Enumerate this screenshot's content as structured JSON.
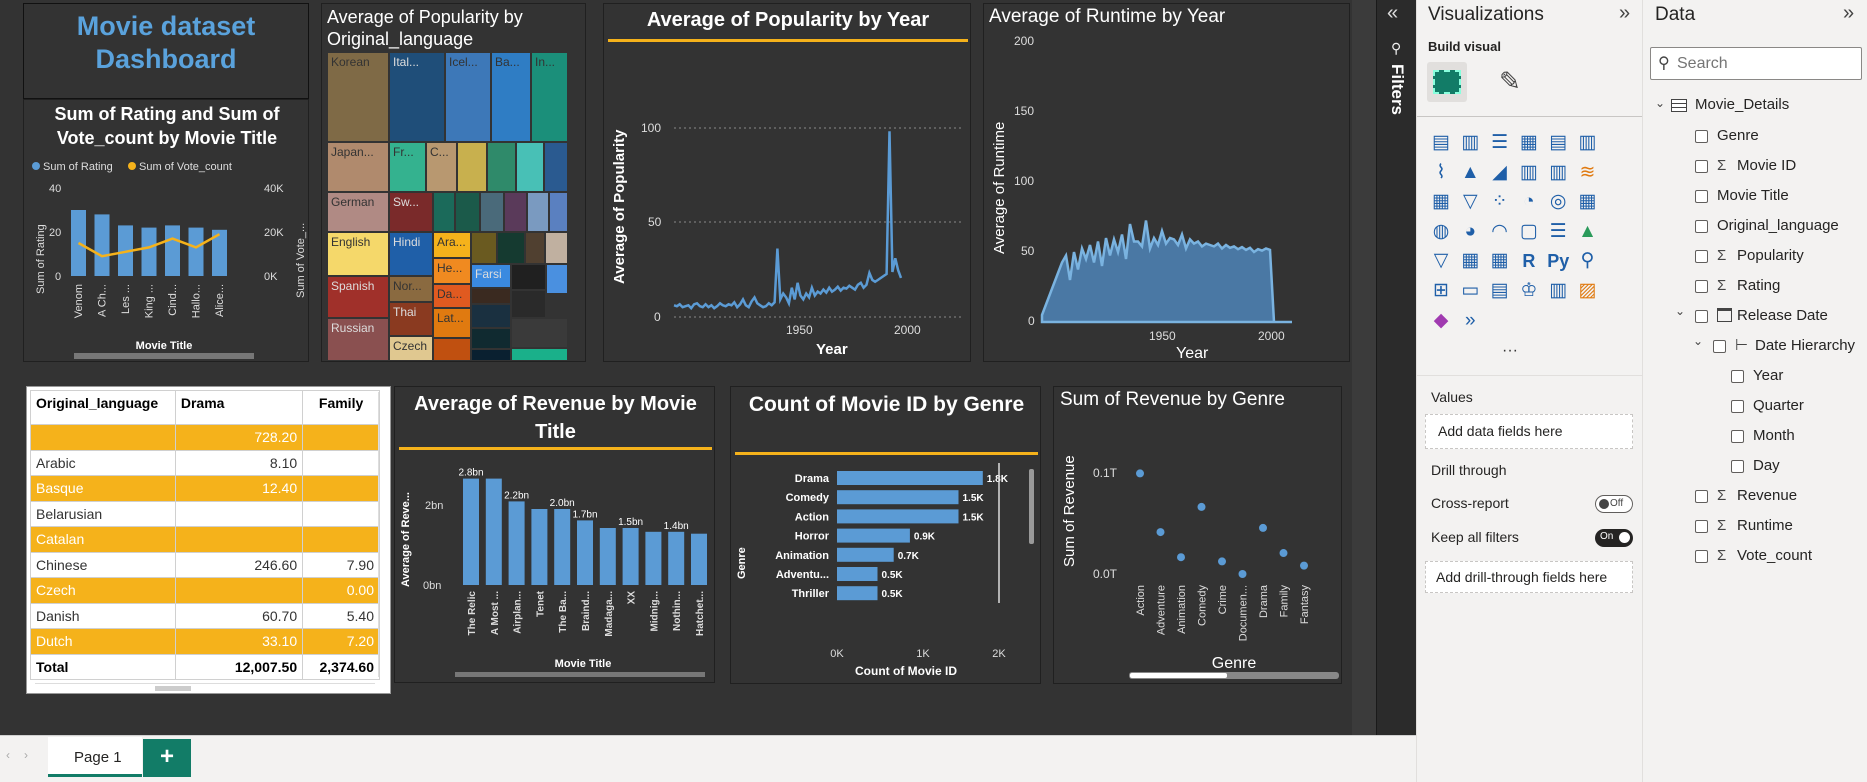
{
  "dashboard": {
    "title": "Movie dataset Dashboard"
  },
  "charts": {
    "rating_vote": {
      "title": "Sum of Rating and Sum of Vote_count by Movie Title",
      "legend": [
        "Sum of Rating",
        "Sum of Vote_count"
      ],
      "left_axis_label": "Sum of Rating",
      "right_axis_label": "Sum of Vote_...",
      "x_label": "Movie Title",
      "left_ticks": [
        "40",
        "20",
        "0"
      ],
      "right_ticks": [
        "40K",
        "20K",
        "0K"
      ],
      "categories": [
        "Venom",
        "A Ch...",
        "Les ...",
        "King ...",
        "Cind...",
        "Hallo...",
        "Alice..."
      ]
    },
    "treemap": {
      "title": "Average of Popularity by Original_language",
      "tiles": [
        "Korean",
        "Ital...",
        "Icel...",
        "Ba...",
        "In...",
        "Japan...",
        "Fr...",
        "C...",
        "German",
        "Sw...",
        "English",
        "Hindi",
        "Ara...",
        "Nor...",
        "He...",
        "Spanish",
        "Thai",
        "Da...",
        "Farsi",
        "Russian",
        "Czech",
        "Lat..."
      ]
    },
    "pop_year": {
      "title": "Average of Popularity by Year",
      "ylabel": "Average of Popularity",
      "xlabel": "Year",
      "yticks": [
        "100",
        "50",
        "0"
      ],
      "xticks": [
        "1950",
        "2000"
      ]
    },
    "runtime_year": {
      "title": "Average of Runtime by Year",
      "ylabel": "Average of Runtime",
      "xlabel": "Year",
      "yticks": [
        "200",
        "150",
        "100",
        "50",
        "0"
      ],
      "xticks": [
        "1950",
        "2000"
      ]
    },
    "matrix": {
      "headers": [
        "Original_language",
        "Drama",
        "Family"
      ],
      "rows": [
        [
          "",
          "728.20",
          ""
        ],
        [
          "Arabic",
          "8.10",
          ""
        ],
        [
          "Basque",
          "12.40",
          ""
        ],
        [
          "Belarusian",
          "",
          ""
        ],
        [
          "Catalan",
          "",
          ""
        ],
        [
          "Chinese",
          "246.60",
          "7.90"
        ],
        [
          "Czech",
          "",
          "0.00"
        ],
        [
          "Danish",
          "60.70",
          "5.40"
        ],
        [
          "Dutch",
          "33.10",
          "7.20"
        ]
      ],
      "total": [
        "Total",
        "12,007.50",
        "2,374.60"
      ]
    },
    "revenue_title": {
      "title": "Average of Revenue by Movie Title",
      "ylabel": "Average of Reve...",
      "xlabel": "Movie Title",
      "yticks": [
        "2bn",
        "0bn"
      ],
      "categories": [
        "The Relic",
        "A Most ...",
        "Airplan...",
        "Tenet",
        "The Ba...",
        "Braind...",
        "Madaga...",
        "XX",
        "Midnig...",
        "Nothin...",
        "Hatchet..."
      ],
      "labels": [
        "2.8bn",
        "2.2bn",
        "2.0bn",
        "1.7bn",
        "1.5bn",
        "1.4bn"
      ]
    },
    "count_genre": {
      "title": "Count of Movie ID by Genre",
      "ylabel": "Genre",
      "xlabel": "Count of Movie ID",
      "xticks": [
        "0K",
        "1K",
        "2K"
      ],
      "categories": [
        "Drama",
        "Comedy",
        "Action",
        "Horror",
        "Animation",
        "Adventu...",
        "Thriller"
      ],
      "labels": [
        "1.8K",
        "1.5K",
        "1.5K",
        "0.9K",
        "0.7K",
        "0.5K",
        "0.5K"
      ]
    },
    "revenue_genre": {
      "title": "Sum of Revenue by Genre",
      "ylabel": "Sum of Revenue",
      "xlabel": "Genre",
      "yticks": [
        "0.1T",
        "0.0T"
      ],
      "categories": [
        "Action",
        "Adventure",
        "Animation",
        "Comedy",
        "Crime",
        "Documen...",
        "Drama",
        "Family",
        "Fantasy"
      ]
    }
  },
  "chart_data": [
    {
      "type": "bar",
      "title": "Sum of Rating and Sum of Vote_count by Movie Title",
      "categories": [
        "Venom",
        "A Ch...",
        "Les ...",
        "King ...",
        "Cind...",
        "Hallo...",
        "Alice..."
      ],
      "series": [
        {
          "name": "Sum of Rating",
          "values": [
            30,
            28,
            23,
            22,
            23,
            22,
            21
          ]
        },
        {
          "name": "Sum of Vote_count",
          "values": [
            15000,
            9000,
            11000,
            13000,
            17000,
            13000,
            19000
          ]
        }
      ],
      "ylim": [
        0,
        40
      ],
      "y2lim": [
        0,
        40000
      ]
    },
    {
      "type": "bar",
      "title": "Average of Revenue by Movie Title",
      "categories": [
        "The Relic",
        "A Most ...",
        "Airplan...",
        "Tenet",
        "The Ba...",
        "Braind...",
        "Madaga...",
        "XX",
        "Midnig...",
        "Nothin...",
        "Hatchet..."
      ],
      "values": [
        2.8,
        2.8,
        2.2,
        2.0,
        2.0,
        1.7,
        1.5,
        1.5,
        1.4,
        1.4,
        1.35
      ],
      "ylabel": "Average of Reve...",
      "xlabel": "Movie Title"
    },
    {
      "type": "bar",
      "title": "Count of Movie ID by Genre",
      "categories": [
        "Drama",
        "Comedy",
        "Action",
        "Horror",
        "Animation",
        "Adventu...",
        "Thriller"
      ],
      "values": [
        1800,
        1500,
        1500,
        900,
        700,
        500,
        500
      ],
      "xlim": [
        0,
        2000
      ]
    },
    {
      "type": "scatter",
      "title": "Sum of Revenue by Genre",
      "categories": [
        "Action",
        "Adventure",
        "Animation",
        "Comedy",
        "Crime",
        "Documen...",
        "Drama",
        "Family",
        "Fantasy"
      ],
      "values": [
        0.12,
        0.05,
        0.02,
        0.08,
        0.015,
        0.0,
        0.055,
        0.025,
        0.01
      ]
    }
  ],
  "filters": {
    "label": "Filters"
  },
  "viz_pane": {
    "title": "Visualizations",
    "build_visual": "Build visual",
    "values_label": "Values",
    "add_data": "Add data fields here",
    "drill_label": "Drill through",
    "cross_report": "Cross-report",
    "cross_toggle": "Off",
    "keep_filters": "Keep all filters",
    "keep_toggle": "On",
    "add_drill": "Add drill-through fields here",
    "more": "···"
  },
  "data_pane": {
    "title": "Data",
    "search_placeholder": "Search",
    "table": "Movie_Details",
    "fields": [
      "Genre",
      "Movie ID",
      "Movie Title",
      "Original_language",
      "Popularity",
      "Rating",
      "Release Date",
      "Date Hierarchy",
      "Year",
      "Quarter",
      "Month",
      "Day",
      "Revenue",
      "Runtime",
      "Vote_count"
    ]
  },
  "page_tabs": {
    "active": "Page 1",
    "add": "+"
  },
  "colors": {
    "accent_blue": "#5b9bd5",
    "accent_orange": "#f5b21b",
    "title_blue": "#5aa2dc",
    "canvas": "#333333"
  }
}
